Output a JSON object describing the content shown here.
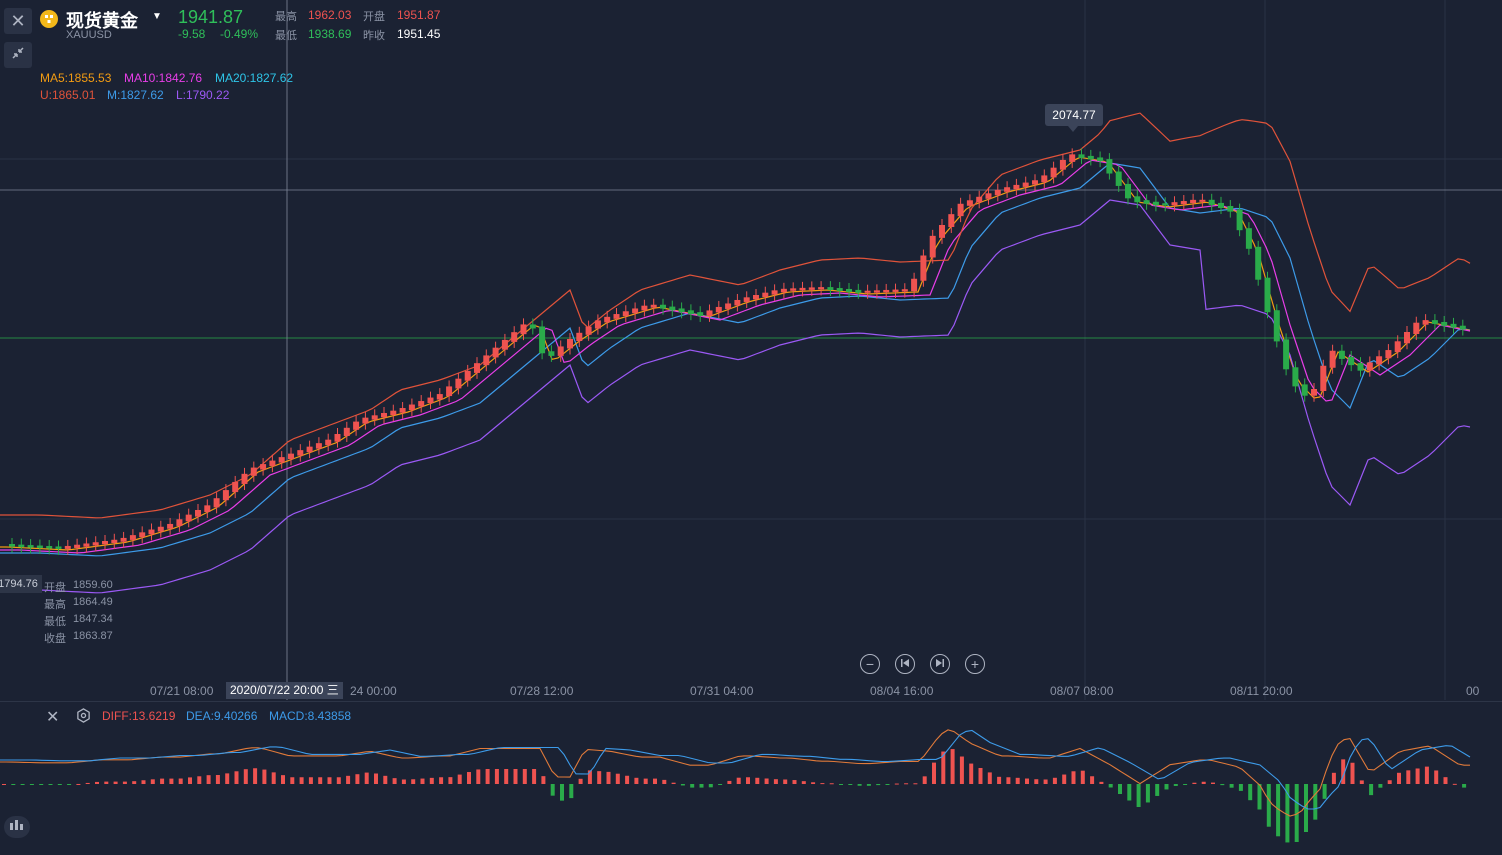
{
  "header": {
    "name": "现货黄金",
    "symbol": "XAUUSD",
    "price": "1941.87",
    "change": "-9.58",
    "change_pct": "-0.49%",
    "high_label": "最高",
    "high": "1962.03",
    "open_label": "开盘",
    "open": "1951.87",
    "low_label": "最低",
    "low": "1938.69",
    "prev_label": "昨收",
    "prev": "1951.45"
  },
  "ma_legend": {
    "ma5": "MA5:1855.53",
    "ma10": "MA10:1842.76",
    "ma20": "MA20:1827.62",
    "u": "U:1865.01",
    "m": "M:1827.62",
    "l": "L:1790.22"
  },
  "peak_label": "2074.77",
  "left_axis_tag": "1794.76",
  "ohlc_box": {
    "open_label": "开盘",
    "open": "1859.60",
    "high_label": "最高",
    "high": "1864.49",
    "low_label": "最低",
    "low": "1847.34",
    "close_label": "收盘",
    "close": "1863.87"
  },
  "x_axis": {
    "labels": [
      "07/21 08:00",
      "07/28 12:00",
      "07/31 04:00",
      "08/04 16:00",
      "08/07 08:00",
      "08/11 20:00"
    ],
    "crosshair_label": "2020/07/22 20:00 三",
    "partial_label": "24 00:00",
    "right_label": "00"
  },
  "macd_legend": {
    "diff": "DIFF:13.6219",
    "dea": "DEA:9.40266",
    "macd": "MACD:8.43858"
  },
  "colors": {
    "bg": "#1b2233",
    "up": "#ef5350",
    "down": "#2aab4a",
    "ma5": "#f39c12",
    "ma10": "#e83ee8",
    "ma20": "#2ec5e8",
    "boll_u": "#e0533a",
    "boll_m": "#3d9be9",
    "boll_l": "#9b59f5"
  },
  "icons": [
    "close-icon",
    "collapse-icon",
    "gold-coin-icon",
    "caret-down-icon",
    "zoom-out-icon",
    "rewind-icon",
    "forward-icon",
    "zoom-in-icon",
    "settings-icon",
    "indicator-icon"
  ]
}
